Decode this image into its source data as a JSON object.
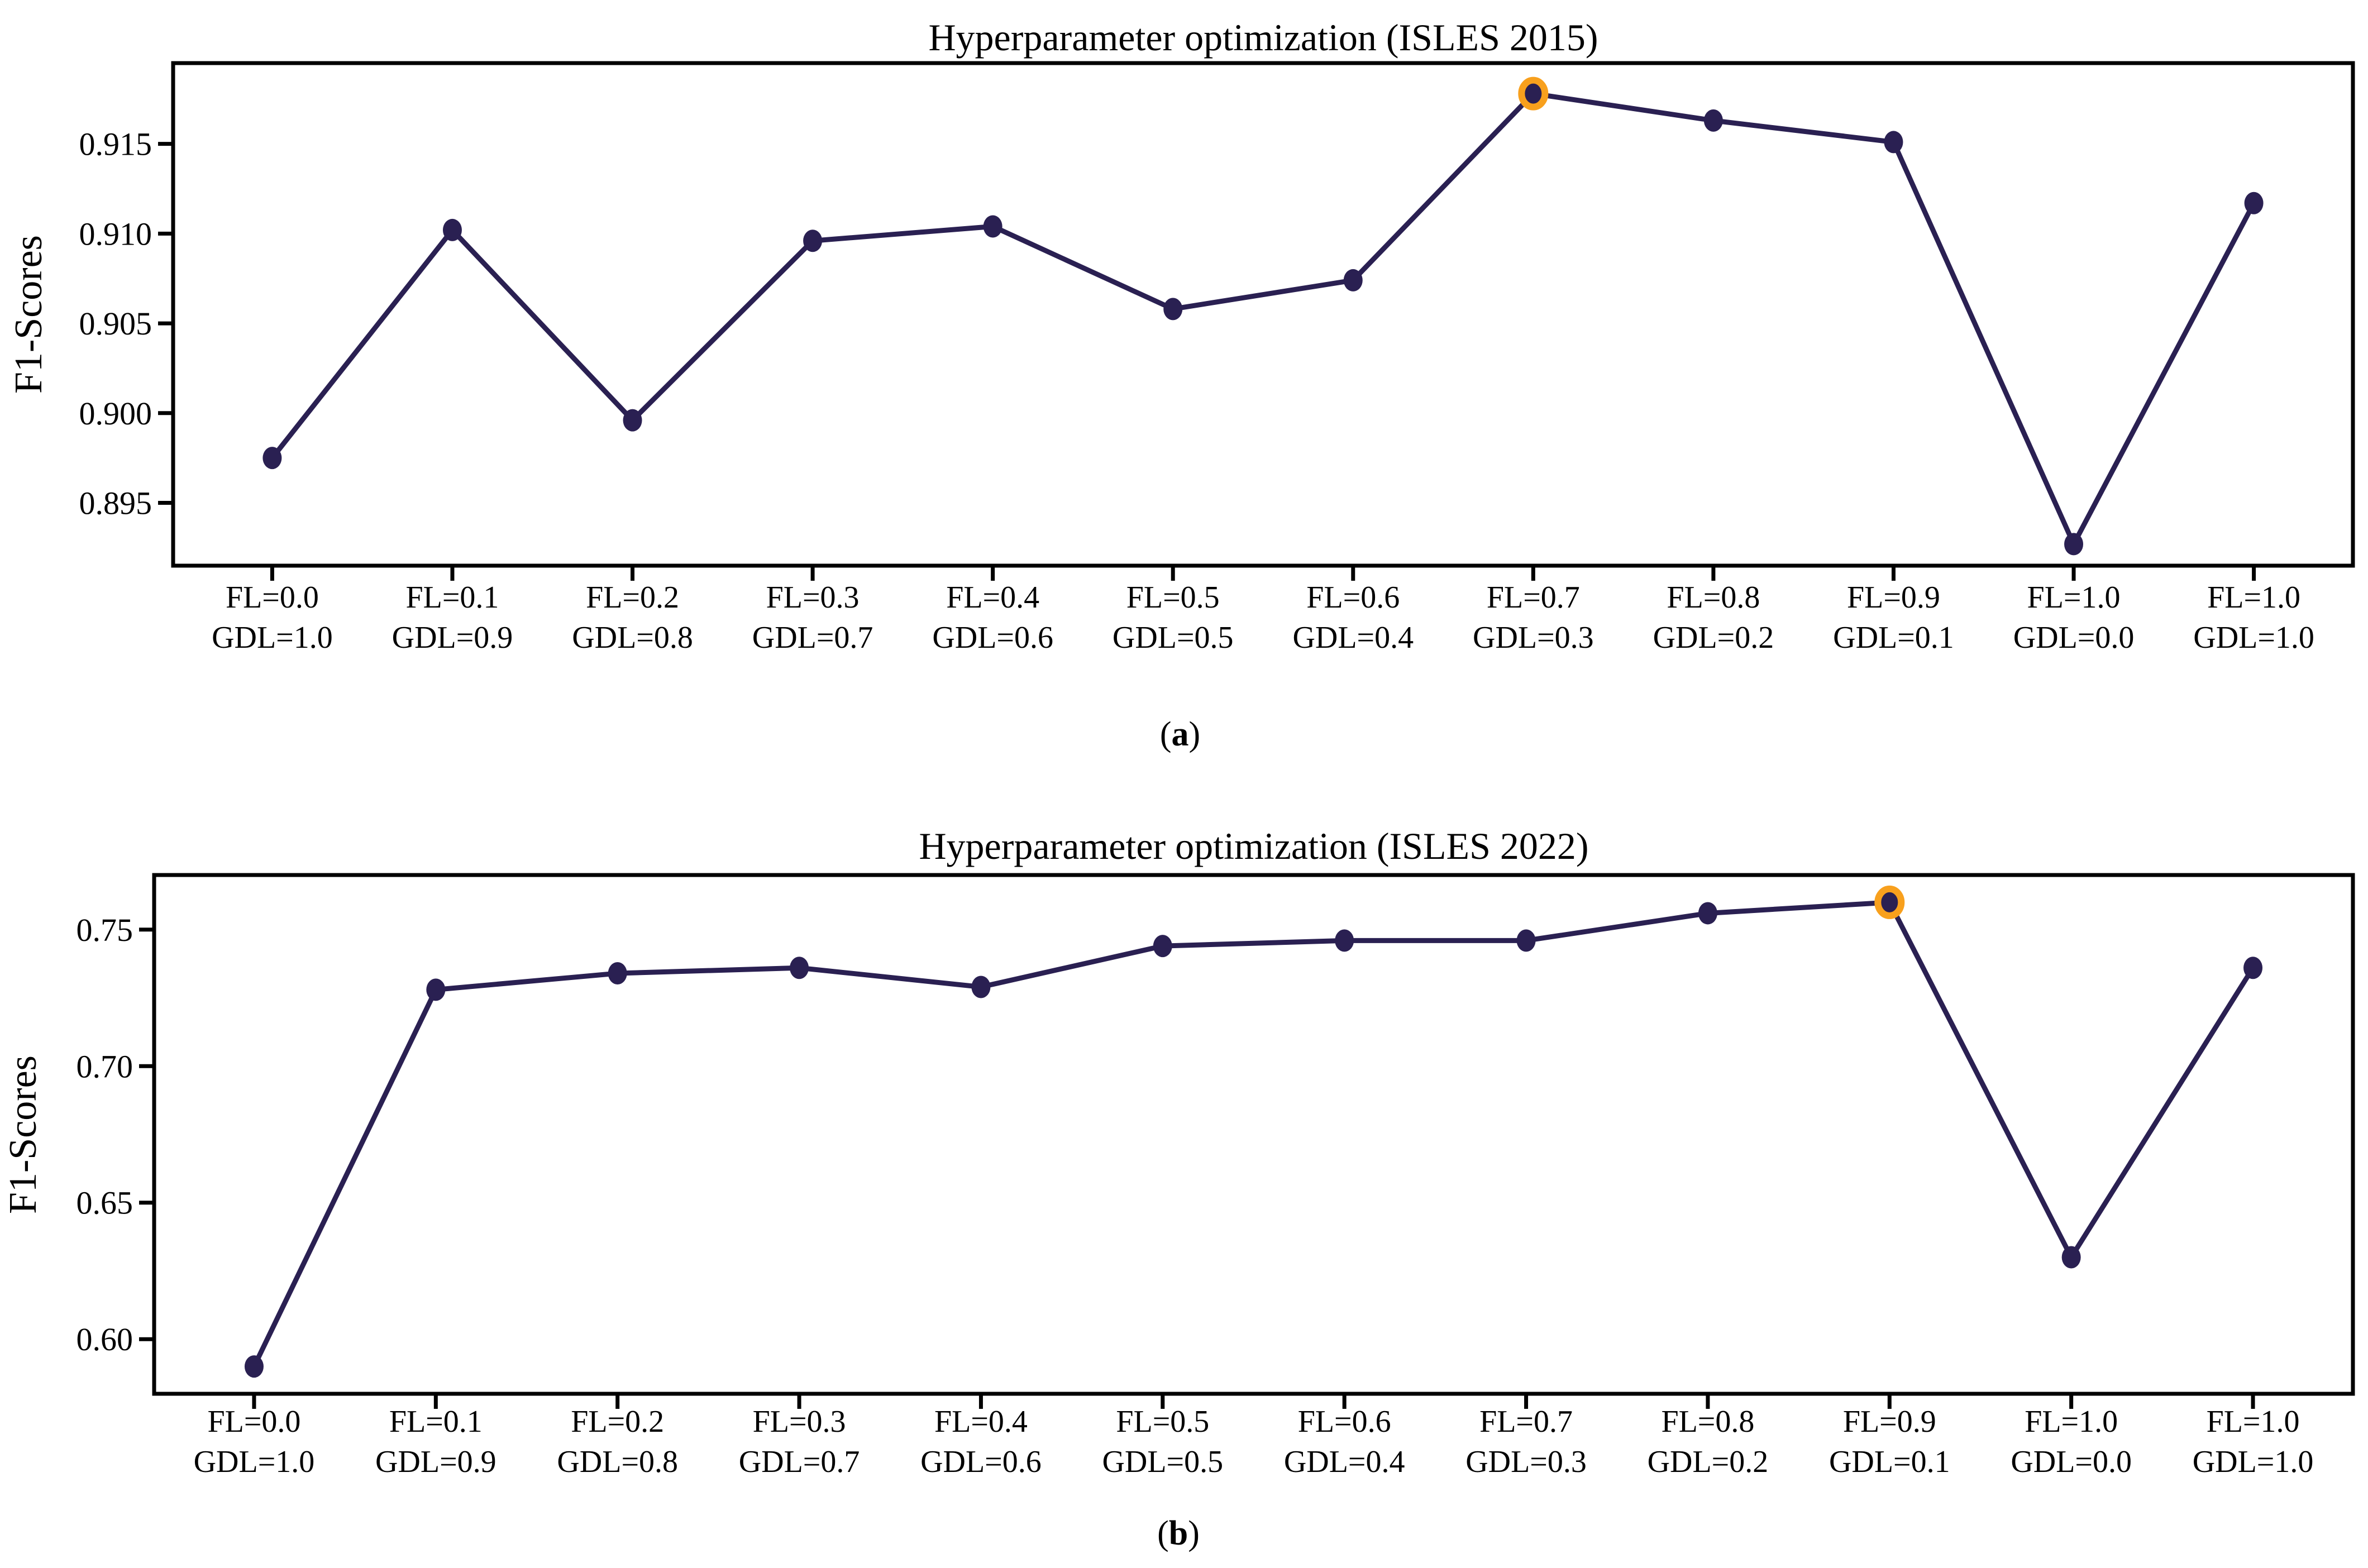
{
  "colors": {
    "line": "#2a2052",
    "marker": "#2a2052",
    "highlight_ring": "#f8a01d",
    "axis": "#000000",
    "text": "#000000",
    "background": "#ffffff"
  },
  "captions": {
    "open": "(",
    "close": ")",
    "a_letter": "a",
    "b_letter": "b"
  },
  "chart_data": [
    {
      "type": "line",
      "title": "Hyperparameter optimization (ISLES 2015)",
      "ylabel": "F1-Scores",
      "xlabel": "",
      "legend": "none",
      "grid": false,
      "categories": [
        [
          "FL=0.0",
          "GDL=1.0"
        ],
        [
          "FL=0.1",
          "GDL=0.9"
        ],
        [
          "FL=0.2",
          "GDL=0.8"
        ],
        [
          "FL=0.3",
          "GDL=0.7"
        ],
        [
          "FL=0.4",
          "GDL=0.6"
        ],
        [
          "FL=0.5",
          "GDL=0.5"
        ],
        [
          "FL=0.6",
          "GDL=0.4"
        ],
        [
          "FL=0.7",
          "GDL=0.3"
        ],
        [
          "FL=0.8",
          "GDL=0.2"
        ],
        [
          "FL=0.9",
          "GDL=0.1"
        ],
        [
          "FL=1.0",
          "GDL=0.0"
        ],
        [
          "FL=1.0",
          "GDL=1.0"
        ]
      ],
      "series": [
        {
          "name": "F1-Scores",
          "values": [
            0.8975,
            0.9102,
            0.8996,
            0.9096,
            0.9104,
            0.9058,
            0.9074,
            0.9178,
            0.9163,
            0.9151,
            0.8927,
            0.9117
          ]
        }
      ],
      "highlight_index": 7,
      "yticks": [
        0.895,
        0.9,
        0.905,
        0.91,
        0.915
      ],
      "ytick_labels": [
        "0.895",
        "0.900",
        "0.905",
        "0.910",
        "0.915"
      ],
      "ylim": [
        0.8915,
        0.9195
      ]
    },
    {
      "type": "line",
      "title": "Hyperparameter optimization (ISLES 2022)",
      "ylabel": "F1-Scores",
      "xlabel": "",
      "legend": "none",
      "grid": false,
      "categories": [
        [
          "FL=0.0",
          "GDL=1.0"
        ],
        [
          "FL=0.1",
          "GDL=0.9"
        ],
        [
          "FL=0.2",
          "GDL=0.8"
        ],
        [
          "FL=0.3",
          "GDL=0.7"
        ],
        [
          "FL=0.4",
          "GDL=0.6"
        ],
        [
          "FL=0.5",
          "GDL=0.5"
        ],
        [
          "FL=0.6",
          "GDL=0.4"
        ],
        [
          "FL=0.7",
          "GDL=0.3"
        ],
        [
          "FL=0.8",
          "GDL=0.2"
        ],
        [
          "FL=0.9",
          "GDL=0.1"
        ],
        [
          "FL=1.0",
          "GDL=0.0"
        ],
        [
          "FL=1.0",
          "GDL=1.0"
        ]
      ],
      "series": [
        {
          "name": "F1-Scores",
          "values": [
            0.59,
            0.728,
            0.734,
            0.736,
            0.729,
            0.744,
            0.746,
            0.746,
            0.756,
            0.76,
            0.63,
            0.736
          ]
        }
      ],
      "highlight_index": 9,
      "yticks": [
        0.6,
        0.65,
        0.7,
        0.75
      ],
      "ytick_labels": [
        "0.60",
        "0.65",
        "0.70",
        "0.75"
      ],
      "ylim": [
        0.58,
        0.77
      ]
    }
  ]
}
